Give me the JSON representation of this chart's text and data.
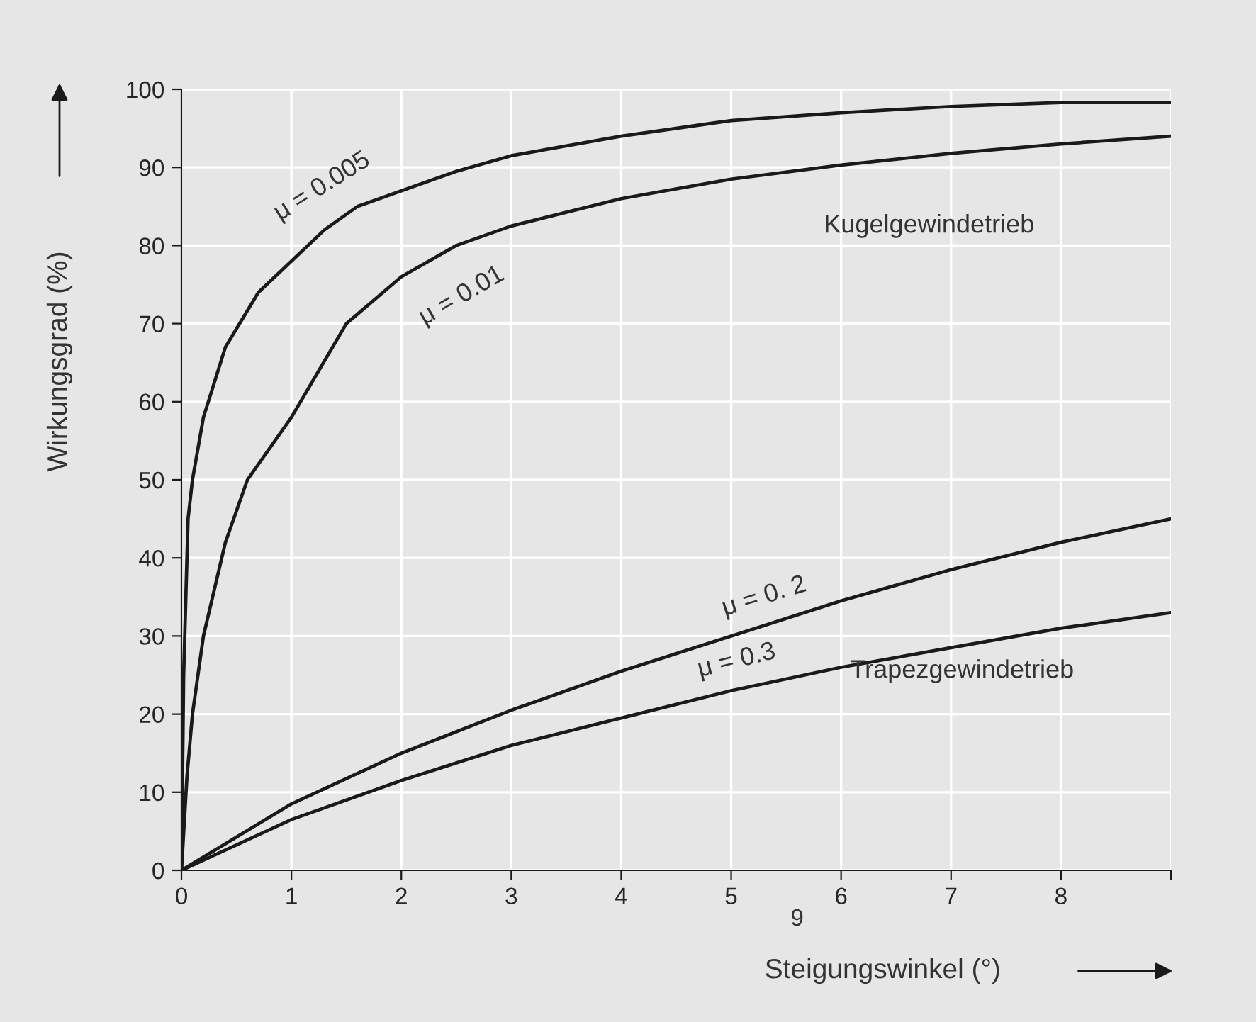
{
  "chart_data": {
    "type": "line",
    "xlabel": "Steigungswinkel (°)",
    "ylabel": "Wirkungsgrad (%)",
    "xlim": [
      0,
      9
    ],
    "ylim": [
      0,
      100
    ],
    "xticks": [
      0,
      1,
      2,
      3,
      4,
      5,
      6,
      7,
      8,
      {
        "value": 9,
        "label": null
      }
    ],
    "yticks": [
      0,
      10,
      20,
      30,
      40,
      50,
      60,
      70,
      80,
      90,
      100
    ],
    "grid": true,
    "legend": false,
    "marker": "none",
    "line_style": "solid",
    "series": [
      {
        "color": "#1a1a1a",
        "x": [
          0,
          0.02,
          0.06,
          0.1,
          0.2,
          0.4,
          0.7,
          1,
          1.3,
          1.6,
          2,
          2.5,
          3,
          4,
          5,
          6,
          7,
          8,
          9
        ],
        "values": [
          0,
          25,
          45,
          50,
          58,
          67,
          74,
          78,
          82,
          85,
          87,
          89.5,
          91.5,
          94,
          96,
          97,
          97.8,
          98.3,
          98.3
        ]
      },
      {
        "color": "#1a1a1a",
        "x": [
          0,
          0.05,
          0.1,
          0.2,
          0.4,
          0.6,
          1,
          1.5,
          2,
          2.5,
          3,
          4,
          5,
          6,
          7,
          8,
          9
        ],
        "values": [
          0,
          12,
          20,
          30,
          42,
          50,
          58,
          70,
          76,
          80,
          82.5,
          86,
          88.5,
          90.3,
          91.8,
          93,
          94
        ]
      },
      {
        "color": "#1a1a1a",
        "x": [
          0,
          1,
          2,
          3,
          4,
          5,
          6,
          7,
          8,
          9
        ],
        "values": [
          0,
          8.5,
          15,
          20.5,
          25.5,
          30,
          34.5,
          38.5,
          42,
          45
        ]
      },
      {
        "color": "#1a1a1a",
        "x": [
          0,
          1,
          2,
          3,
          4,
          5,
          6,
          7,
          8,
          9
        ],
        "values": [
          0,
          6.5,
          11.5,
          16,
          19.5,
          23,
          26,
          28.5,
          31,
          33
        ]
      }
    ],
    "annotations": [
      "μ = 0.005",
      "μ = 0.01",
      "μ = 0. 2",
      "μ = 0.3",
      "Kugelgewindetrieb",
      "Trapezgewindetrieb",
      "9"
    ]
  }
}
